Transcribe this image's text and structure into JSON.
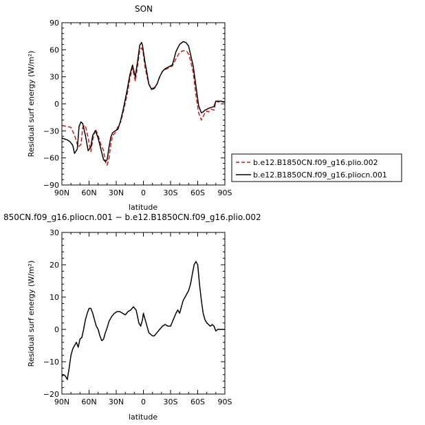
{
  "chart_data": [
    {
      "type": "line",
      "title": "SON",
      "xlabel": "latitude",
      "ylabel": "Residual surf energy (W/m²)",
      "x_axis": "latitude, 90N to 90S (x values: + = N, - = S)",
      "xlim": [
        90,
        -90
      ],
      "ylim": [
        -90,
        90
      ],
      "x_ticks": [
        90,
        60,
        30,
        0,
        -30,
        -60,
        -90
      ],
      "x_tick_labels": [
        "90N",
        "60N",
        "30N",
        "0",
        "30S",
        "60S",
        "90S"
      ],
      "y_ticks": [
        90,
        60,
        30,
        0,
        -30,
        -60,
        -90
      ],
      "y_tick_labels": [
        "90",
        "60",
        "30",
        "0",
        "−30",
        "−60",
        "−90"
      ],
      "legend_position": "right",
      "series": [
        {
          "name": "b.e12.B1850CN.f09_g16.plio.002",
          "style": "dashed",
          "color": "#dd1111",
          "x": [
            90,
            85,
            80,
            76,
            72,
            69,
            67,
            64,
            61,
            58,
            56,
            53,
            50,
            47,
            44,
            42,
            40,
            38,
            36,
            34,
            31,
            28,
            25,
            22,
            18,
            15,
            12,
            9,
            6,
            4,
            2,
            1,
            0,
            -2,
            -4,
            -6,
            -9,
            -12,
            -15,
            -18,
            -21,
            -24,
            -28,
            -32,
            -36,
            -40,
            -44,
            -48,
            -50,
            -52,
            -55,
            -58,
            -61,
            -64,
            -66,
            -68,
            -70,
            -72,
            -75,
            -78,
            -80,
            -83,
            -86,
            -90
          ],
          "y": [
            -24,
            -25,
            -26,
            -35,
            -48,
            -45,
            -26,
            -24,
            -38,
            -53,
            -40,
            -28,
            -35,
            -45,
            -52,
            -64,
            -68,
            -60,
            -45,
            -35,
            -32,
            -25,
            -20,
            -8,
            10,
            28,
            40,
            25,
            45,
            60,
            62,
            60,
            55,
            40,
            30,
            22,
            17,
            18,
            22,
            30,
            36,
            38,
            40,
            42,
            50,
            57,
            59,
            58,
            55,
            48,
            35,
            10,
            -10,
            -18,
            -14,
            -10,
            -8,
            -9,
            -6,
            -7,
            3,
            2,
            2,
            2
          ]
        },
        {
          "name": "b.e12.B1850CN.f09_g16.pliocn.001",
          "style": "solid",
          "color": "#000000",
          "x": [
            90,
            87,
            84,
            81,
            78,
            76,
            73,
            71,
            69,
            67,
            64,
            61,
            58,
            56,
            53,
            50,
            47,
            44,
            42,
            40,
            38,
            36,
            34,
            31,
            28,
            25,
            22,
            18,
            15,
            12,
            9,
            6,
            4,
            2,
            1,
            0,
            -2,
            -4,
            -6,
            -9,
            -12,
            -15,
            -18,
            -21,
            -24,
            -28,
            -32,
            -36,
            -40,
            -44,
            -47,
            -50,
            -52,
            -55,
            -58,
            -61,
            -64,
            -66,
            -68,
            -70,
            -72,
            -75,
            -78,
            -80,
            -83,
            -86,
            -90
          ],
          "y": [
            -38,
            -39,
            -40,
            -42,
            -46,
            -55,
            -50,
            -25,
            -20,
            -22,
            -35,
            -52,
            -48,
            -35,
            -30,
            -38,
            -50,
            -62,
            -64,
            -62,
            -48,
            -37,
            -32,
            -30,
            -28,
            -18,
            -5,
            15,
            32,
            43,
            30,
            50,
            65,
            68,
            65,
            58,
            45,
            34,
            22,
            16,
            17,
            22,
            30,
            36,
            39,
            41,
            43,
            58,
            66,
            69,
            68,
            64,
            55,
            42,
            20,
            -2,
            -10,
            -9,
            -7,
            -6,
            -5,
            -4,
            -3,
            3,
            3,
            3,
            2
          ]
        }
      ]
    },
    {
      "type": "line",
      "title": "850CN.f09_g16.pliocn.001 − b.e12.B1850CN.f09_g16.plio.002",
      "xlabel": "latitude",
      "ylabel": "Residual surf energy (W/m²)",
      "x_axis": "latitude, 90N to 90S (x values: + = N, - = S)",
      "xlim": [
        90,
        -90
      ],
      "ylim": [
        -20,
        30
      ],
      "x_ticks": [
        90,
        60,
        30,
        0,
        -30,
        -60,
        -90
      ],
      "x_tick_labels": [
        "90N",
        "60N",
        "30N",
        "0",
        "30S",
        "60S",
        "90S"
      ],
      "y_ticks": [
        30,
        20,
        10,
        0,
        -10,
        -20
      ],
      "y_tick_labels": [
        "30",
        "20",
        "10",
        "0",
        "−10",
        "−20"
      ],
      "series": [
        {
          "name": "",
          "style": "solid",
          "color": "#000000",
          "x": [
            90,
            88,
            86,
            84,
            82,
            80,
            78,
            76,
            74,
            72,
            70,
            68,
            66,
            64,
            62,
            60,
            58,
            56,
            54,
            52,
            50,
            48,
            46,
            44,
            42,
            40,
            38,
            35,
            32,
            29,
            26,
            23,
            20,
            17,
            14,
            11,
            8,
            5,
            3,
            1,
            0,
            -2,
            -4,
            -6,
            -8,
            -10,
            -12,
            -15,
            -18,
            -21,
            -24,
            -27,
            -30,
            -33,
            -36,
            -38,
            -40,
            -42,
            -44,
            -46,
            -48,
            -50,
            -52,
            -54,
            -56,
            -58,
            -60,
            -62,
            -64,
            -66,
            -68,
            -70,
            -72,
            -74,
            -76,
            -78,
            -80,
            -82,
            -84,
            -86,
            -88,
            -90
          ],
          "y": [
            -14.5,
            -14,
            -14.5,
            -15.5,
            -12,
            -8,
            -6,
            -5,
            -4,
            -5.5,
            -3,
            -2.5,
            0,
            3,
            5,
            6.5,
            6.5,
            5,
            3,
            1,
            0,
            -2,
            -3.5,
            -3,
            -1,
            0.5,
            2.5,
            4,
            5,
            5.5,
            5.5,
            5,
            4.5,
            5.5,
            6,
            7,
            6,
            2,
            1,
            3,
            5,
            3,
            1,
            -1,
            -1.5,
            -2,
            -2,
            -1,
            0,
            1,
            1.5,
            1,
            1,
            3,
            5,
            6,
            5,
            7,
            9,
            10,
            11,
            12,
            14,
            17,
            20,
            21,
            20,
            14,
            9,
            5,
            3,
            2,
            1.5,
            1,
            1.5,
            1,
            -0.5,
            0,
            0,
            0,
            0,
            0
          ]
        }
      ]
    }
  ]
}
